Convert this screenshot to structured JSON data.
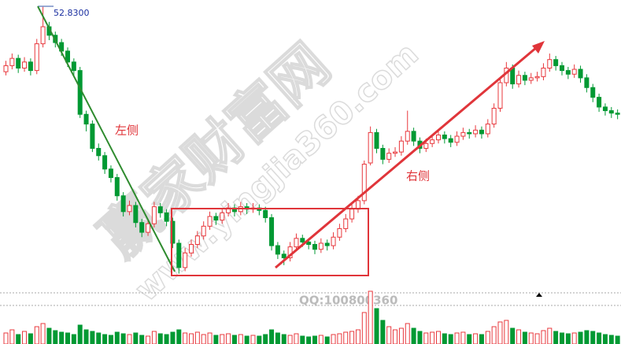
{
  "chart_data": {
    "type": "candlestick",
    "ylim": [
      30,
      53.4
    ],
    "volume_lim": [
      0,
      70
    ],
    "up_color": "#e8383d",
    "down_color": "#009933",
    "peak_label": "52.8300",
    "left_label": "左侧",
    "right_label": "右侧",
    "watermark": {
      "site": "赢家财富网",
      "url": "www.yingjia360.com",
      "qq": "QQ:100800360"
    },
    "candles": [
      [
        47.5,
        48.4,
        47.2,
        48.0
      ],
      [
        48.0,
        49.0,
        47.7,
        48.6
      ],
      [
        48.6,
        48.9,
        47.4,
        47.8
      ],
      [
        47.8,
        48.7,
        47.5,
        48.3
      ],
      [
        48.3,
        48.6,
        47.2,
        47.6
      ],
      [
        47.6,
        50.2,
        47.3,
        49.8
      ],
      [
        49.8,
        52.83,
        49.5,
        51.2
      ],
      [
        51.2,
        51.6,
        50.1,
        50.5
      ],
      [
        50.5,
        50.8,
        49.5,
        49.9
      ],
      [
        49.9,
        50.2,
        48.8,
        49.2
      ],
      [
        49.2,
        49.5,
        47.9,
        48.3
      ],
      [
        48.3,
        48.6,
        47.2,
        47.6
      ],
      [
        47.6,
        47.9,
        43.7,
        44.0
      ],
      [
        44.0,
        44.3,
        42.6,
        43.2
      ],
      [
        43.2,
        43.5,
        40.9,
        41.2
      ],
      [
        41.2,
        41.6,
        40.2,
        40.6
      ],
      [
        40.6,
        40.9,
        39.1,
        39.5
      ],
      [
        39.5,
        39.8,
        38.4,
        38.8
      ],
      [
        38.8,
        39.1,
        36.9,
        37.3
      ],
      [
        37.3,
        37.6,
        35.6,
        36.0
      ],
      [
        36.0,
        36.9,
        35.7,
        36.5
      ],
      [
        36.5,
        36.8,
        34.7,
        35.1
      ],
      [
        35.1,
        35.4,
        33.9,
        34.3
      ],
      [
        34.3,
        35.4,
        34.0,
        35.0
      ],
      [
        35.0,
        36.8,
        34.7,
        36.4
      ],
      [
        36.4,
        36.7,
        35.5,
        35.9
      ],
      [
        35.9,
        36.2,
        34.8,
        35.2
      ],
      [
        35.2,
        35.5,
        33.0,
        33.4
      ],
      [
        33.4,
        33.7,
        30.9,
        31.4
      ],
      [
        31.4,
        33.0,
        31.1,
        32.6
      ],
      [
        32.6,
        33.7,
        32.3,
        33.3
      ],
      [
        33.3,
        34.4,
        33.0,
        34.0
      ],
      [
        34.0,
        35.2,
        33.7,
        34.8
      ],
      [
        34.8,
        36.0,
        34.5,
        35.6
      ],
      [
        35.6,
        35.9,
        34.9,
        35.3
      ],
      [
        35.3,
        36.3,
        35.0,
        35.9
      ],
      [
        35.9,
        36.7,
        35.6,
        36.3
      ],
      [
        36.3,
        36.6,
        35.6,
        36.0
      ],
      [
        36.0,
        36.8,
        35.7,
        36.4
      ],
      [
        36.4,
        36.7,
        35.8,
        36.2
      ],
      [
        36.2,
        36.7,
        35.9,
        36.3
      ],
      [
        36.3,
        36.6,
        35.7,
        36.1
      ],
      [
        36.1,
        36.4,
        35.1,
        35.5
      ],
      [
        35.5,
        35.8,
        32.8,
        33.2
      ],
      [
        33.2,
        33.5,
        32.1,
        32.5
      ],
      [
        32.5,
        32.8,
        31.6,
        32.2
      ],
      [
        32.2,
        33.5,
        31.9,
        33.1
      ],
      [
        33.1,
        34.2,
        32.8,
        33.8
      ],
      [
        33.8,
        34.1,
        33.1,
        33.5
      ],
      [
        33.5,
        33.8,
        32.9,
        33.3
      ],
      [
        33.3,
        33.6,
        32.5,
        32.9
      ],
      [
        32.9,
        33.8,
        32.6,
        33.4
      ],
      [
        33.4,
        33.7,
        32.8,
        33.2
      ],
      [
        33.2,
        34.3,
        32.9,
        33.9
      ],
      [
        33.9,
        35.0,
        33.6,
        34.6
      ],
      [
        34.6,
        35.8,
        34.3,
        35.4
      ],
      [
        35.4,
        36.6,
        35.1,
        36.2
      ],
      [
        36.2,
        37.3,
        35.9,
        36.9
      ],
      [
        36.9,
        40.2,
        36.6,
        39.9
      ],
      [
        40.0,
        43.0,
        39.8,
        42.5
      ],
      [
        42.5,
        42.8,
        40.8,
        41.2
      ],
      [
        41.2,
        41.5,
        39.9,
        40.3
      ],
      [
        40.3,
        41.2,
        40.0,
        40.8
      ],
      [
        40.8,
        41.3,
        40.5,
        40.9
      ],
      [
        40.9,
        42.2,
        40.6,
        41.8
      ],
      [
        41.8,
        44.3,
        41.5,
        42.6
      ],
      [
        42.6,
        42.9,
        41.4,
        41.8
      ],
      [
        41.8,
        42.1,
        40.8,
        41.2
      ],
      [
        41.2,
        42.0,
        40.9,
        41.6
      ],
      [
        41.6,
        42.3,
        41.3,
        41.9
      ],
      [
        41.9,
        42.7,
        41.6,
        42.3
      ],
      [
        42.3,
        42.6,
        41.6,
        42.0
      ],
      [
        42.0,
        42.3,
        41.3,
        41.7
      ],
      [
        41.7,
        42.6,
        41.4,
        42.2
      ],
      [
        42.2,
        42.9,
        41.9,
        42.5
      ],
      [
        42.5,
        42.8,
        42.0,
        42.4
      ],
      [
        42.4,
        43.1,
        42.1,
        42.7
      ],
      [
        42.7,
        43.0,
        42.0,
        42.4
      ],
      [
        42.4,
        43.6,
        42.1,
        43.2
      ],
      [
        43.2,
        44.9,
        42.9,
        44.5
      ],
      [
        44.5,
        47.0,
        44.2,
        46.6
      ],
      [
        46.6,
        48.3,
        46.3,
        47.8
      ],
      [
        47.8,
        48.1,
        46.1,
        46.5
      ],
      [
        46.5,
        47.6,
        46.2,
        47.2
      ],
      [
        47.2,
        47.5,
        46.4,
        46.8
      ],
      [
        46.8,
        47.4,
        46.5,
        47.0
      ],
      [
        47.0,
        47.5,
        46.7,
        47.1
      ],
      [
        47.1,
        48.2,
        46.8,
        47.8
      ],
      [
        47.8,
        49.0,
        47.5,
        48.5
      ],
      [
        48.5,
        48.8,
        47.6,
        48.0
      ],
      [
        48.0,
        48.3,
        47.2,
        47.6
      ],
      [
        47.6,
        47.9,
        46.9,
        47.3
      ],
      [
        47.3,
        48.1,
        47.0,
        47.7
      ],
      [
        47.7,
        48.0,
        46.6,
        47.0
      ],
      [
        47.0,
        47.3,
        45.8,
        46.2
      ],
      [
        46.2,
        46.5,
        45.0,
        45.4
      ],
      [
        45.4,
        45.7,
        44.2,
        44.6
      ],
      [
        44.6,
        44.9,
        43.9,
        44.3
      ],
      [
        44.3,
        44.6,
        43.7,
        44.1
      ],
      [
        44.1,
        44.4,
        43.6,
        44.0
      ]
    ],
    "volume": [
      14,
      18,
      12,
      16,
      13,
      22,
      26,
      20,
      17,
      15,
      14,
      12,
      24,
      18,
      16,
      14,
      12,
      11,
      15,
      13,
      12,
      14,
      11,
      10,
      16,
      13,
      12,
      15,
      18,
      14,
      13,
      15,
      12,
      14,
      11,
      12,
      13,
      11,
      12,
      10,
      11,
      10,
      12,
      18,
      14,
      12,
      11,
      13,
      10,
      9,
      10,
      11,
      9,
      12,
      13,
      15,
      16,
      18,
      40,
      67,
      45,
      30,
      22,
      18,
      20,
      26,
      20,
      16,
      14,
      15,
      16,
      13,
      12,
      14,
      15,
      12,
      13,
      12,
      16,
      22,
      28,
      30,
      20,
      18,
      15,
      14,
      13,
      17,
      20,
      16,
      14,
      13,
      14,
      15,
      17,
      16,
      14,
      12,
      11,
      10
    ]
  }
}
